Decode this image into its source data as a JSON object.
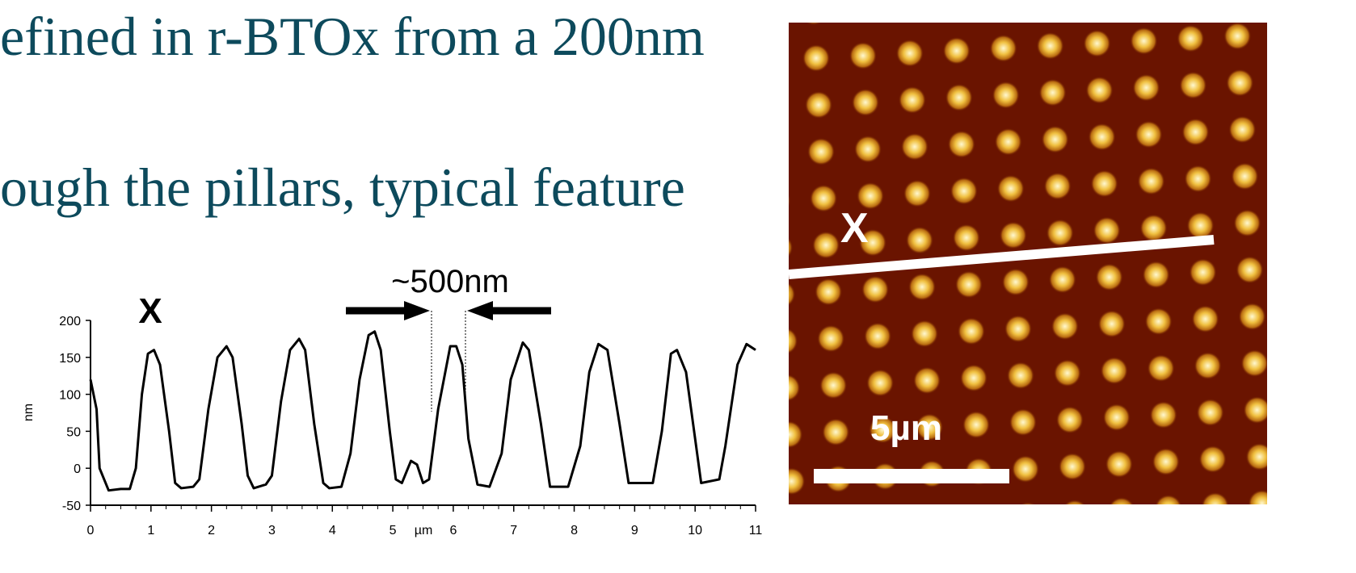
{
  "slide": {
    "line1": "efined in r-BTOx from a 200nm",
    "line2": "ough the pillars, typical feature"
  },
  "chart_data": {
    "type": "line",
    "x_label": "µm",
    "y_label": "nm",
    "annotations": [
      "X",
      "~500nm"
    ],
    "x": [
      0,
      0.1,
      0.15,
      0.3,
      0.5,
      0.65,
      0.75,
      0.85,
      0.95,
      1.05,
      1.15,
      1.3,
      1.4,
      1.5,
      1.7,
      1.8,
      1.95,
      2.1,
      2.25,
      2.35,
      2.5,
      2.6,
      2.7,
      2.9,
      3.0,
      3.15,
      3.3,
      3.45,
      3.55,
      3.7,
      3.85,
      3.95,
      4.15,
      4.3,
      4.45,
      4.6,
      4.7,
      4.8,
      4.95,
      5.05,
      5.15,
      5.3,
      5.4,
      5.5,
      5.6,
      5.75,
      5.95,
      6.05,
      6.15,
      6.25,
      6.4,
      6.6,
      6.8,
      6.95,
      7.15,
      7.25,
      7.45,
      7.6,
      7.9,
      8.1,
      8.25,
      8.4,
      8.55,
      8.75,
      8.9,
      9.3,
      9.45,
      9.6,
      9.7,
      9.85,
      10.0,
      10.1,
      10.4,
      10.5,
      10.7,
      10.85,
      11
    ],
    "values": [
      120,
      80,
      0,
      -30,
      -28,
      -28,
      0,
      100,
      155,
      160,
      140,
      50,
      -20,
      -27,
      -25,
      -15,
      80,
      150,
      165,
      150,
      60,
      -10,
      -27,
      -22,
      -10,
      90,
      160,
      175,
      160,
      60,
      -20,
      -27,
      -25,
      20,
      120,
      180,
      185,
      160,
      50,
      -15,
      -20,
      10,
      5,
      -20,
      -15,
      80,
      165,
      165,
      140,
      40,
      -22,
      -25,
      20,
      120,
      170,
      160,
      60,
      -25,
      -25,
      30,
      130,
      168,
      160,
      60,
      -20,
      -20,
      50,
      155,
      160,
      130,
      40,
      -20,
      -15,
      30,
      140,
      168,
      160
    ],
    "color": "#000000",
    "xlim": [
      0,
      11
    ],
    "xticks": [
      0,
      1,
      2,
      3,
      4,
      5,
      6,
      7,
      8,
      9,
      10,
      11
    ],
    "ylim": [
      -50,
      200
    ],
    "yticks": [
      -50,
      0,
      50,
      100,
      150,
      200
    ]
  },
  "image": {
    "marker": "X",
    "scale_label": "5µm"
  }
}
